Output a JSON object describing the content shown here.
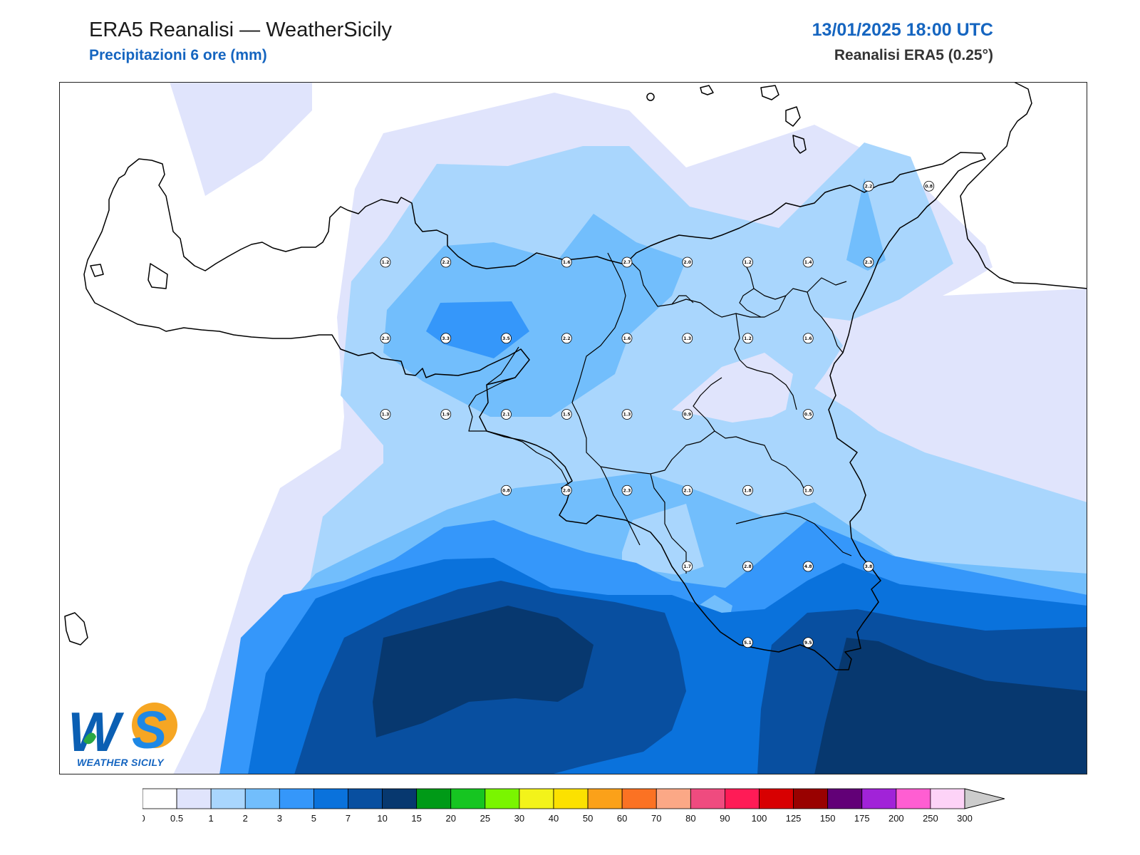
{
  "header": {
    "title": "ERA5 Reanalisi — WeatherSicily",
    "subtitle": "Precipitazioni 6 ore (mm)",
    "datetime": "13/01/2025 18:00 UTC",
    "model": "Reanalisi ERA5 (0.25°)"
  },
  "logo": {
    "text": "WEATHER SICILY"
  },
  "colorbar": {
    "levels": [
      "0",
      "0.5",
      "1",
      "2",
      "3",
      "5",
      "7",
      "10",
      "15",
      "20",
      "25",
      "30",
      "40",
      "50",
      "60",
      "70",
      "80",
      "90",
      "100",
      "125",
      "150",
      "175",
      "200",
      "250",
      "300"
    ],
    "colors": [
      "#ffffff",
      "#e0e4fc",
      "#a9d6fd",
      "#72befc",
      "#3597fa",
      "#0a72dc",
      "#084fa0",
      "#07386f",
      "#009a17",
      "#16c521",
      "#7af500",
      "#f3f31a",
      "#fce100",
      "#fba119",
      "#fb7223",
      "#fba886",
      "#ef4b7f",
      "#ff1b56",
      "#d80001",
      "#990100",
      "#620077",
      "#a123d8",
      "#ff5ed2",
      "#fdd3f7"
    ],
    "extend_color": "#cccccc"
  },
  "stations": [
    {
      "v": "1.2",
      "lon": 12.5,
      "lat": 38.0
    },
    {
      "v": "2.2",
      "lon": 12.75,
      "lat": 38.0
    },
    {
      "v": "1.6",
      "lon": 13.25,
      "lat": 38.0
    },
    {
      "v": "2.7",
      "lon": 13.5,
      "lat": 38.0
    },
    {
      "v": "2.0",
      "lon": 13.75,
      "lat": 38.0
    },
    {
      "v": "1.2",
      "lon": 14.0,
      "lat": 38.0
    },
    {
      "v": "1.4",
      "lon": 14.25,
      "lat": 38.0
    },
    {
      "v": "2.3",
      "lon": 14.5,
      "lat": 38.0
    },
    {
      "v": "2.2",
      "lon": 14.5,
      "lat": 38.25
    },
    {
      "v": "0.8",
      "lon": 14.75,
      "lat": 38.25
    },
    {
      "v": "2.3",
      "lon": 12.5,
      "lat": 37.75
    },
    {
      "v": "3.3",
      "lon": 12.75,
      "lat": 37.75
    },
    {
      "v": "3.5",
      "lon": 13.0,
      "lat": 37.75
    },
    {
      "v": "2.2",
      "lon": 13.25,
      "lat": 37.75
    },
    {
      "v": "1.6",
      "lon": 13.5,
      "lat": 37.75
    },
    {
      "v": "1.3",
      "lon": 13.75,
      "lat": 37.75
    },
    {
      "v": "1.2",
      "lon": 14.0,
      "lat": 37.75
    },
    {
      "v": "1.6",
      "lon": 14.25,
      "lat": 37.75
    },
    {
      "v": "1.3",
      "lon": 12.5,
      "lat": 37.5
    },
    {
      "v": "1.9",
      "lon": 12.75,
      "lat": 37.5
    },
    {
      "v": "2.1",
      "lon": 13.0,
      "lat": 37.5
    },
    {
      "v": "1.5",
      "lon": 13.25,
      "lat": 37.5
    },
    {
      "v": "1.3",
      "lon": 13.5,
      "lat": 37.5
    },
    {
      "v": "0.9",
      "lon": 13.75,
      "lat": 37.5
    },
    {
      "v": "0.5",
      "lon": 14.25,
      "lat": 37.5
    },
    {
      "v": "0.8",
      "lon": 13.0,
      "lat": 37.25
    },
    {
      "v": "2.0",
      "lon": 13.25,
      "lat": 37.25
    },
    {
      "v": "2.3",
      "lon": 13.5,
      "lat": 37.25
    },
    {
      "v": "2.1",
      "lon": 13.75,
      "lat": 37.25
    },
    {
      "v": "1.8",
      "lon": 14.0,
      "lat": 37.25
    },
    {
      "v": "1.8",
      "lon": 14.25,
      "lat": 37.25
    },
    {
      "v": "1.7",
      "lon": 13.75,
      "lat": 37.0
    },
    {
      "v": "2.8",
      "lon": 14.0,
      "lat": 37.0
    },
    {
      "v": "4.8",
      "lon": 14.25,
      "lat": 37.0
    },
    {
      "v": "3.8",
      "lon": 14.5,
      "lat": 37.0
    },
    {
      "v": "5.1",
      "lon": 14.0,
      "lat": 36.75
    },
    {
      "v": "9.5",
      "lon": 14.25,
      "lat": 36.75
    }
  ]
}
